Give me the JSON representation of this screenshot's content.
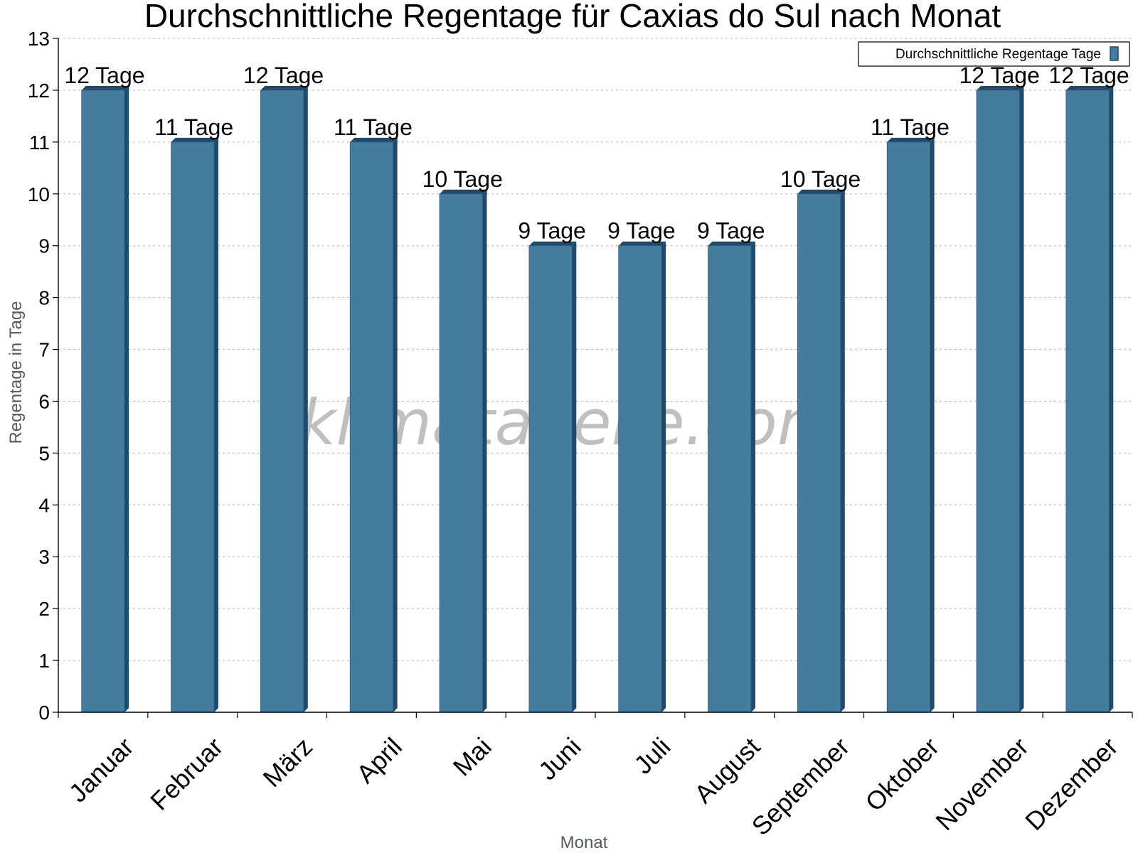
{
  "chart_data": {
    "type": "bar",
    "title": "Durchschnittliche Regentage für Caxias do Sul nach Monat",
    "xlabel": "Monat",
    "ylabel": "Regentage in Tage",
    "ylim": [
      0,
      13
    ],
    "yticks": [
      "0",
      "1",
      "2",
      "3",
      "4",
      "5",
      "6",
      "7",
      "8",
      "9",
      "10",
      "11",
      "12",
      "13"
    ],
    "grid": true,
    "legend_position": "top-right",
    "categories": [
      "Januar",
      "Februar",
      "März",
      "April",
      "Mai",
      "Juni",
      "Juli",
      "August",
      "September",
      "Oktober",
      "November",
      "Dezember"
    ],
    "series": [
      {
        "name": "Durchschnittliche Regentage Tage",
        "values": [
          12,
          11,
          12,
          11,
          10,
          9,
          9,
          9,
          10,
          11,
          12,
          12
        ],
        "data_labels": [
          "12 Tage",
          "11 Tage",
          "12 Tage",
          "11 Tage",
          "10 Tage",
          "9 Tage",
          "9 Tage",
          "9 Tage",
          "10 Tage",
          "11 Tage",
          "12 Tage",
          "12 Tage"
        ],
        "color": "#457b9d",
        "edge_color": "#1e4a6b"
      }
    ],
    "watermark": "klimatabelle.com"
  }
}
